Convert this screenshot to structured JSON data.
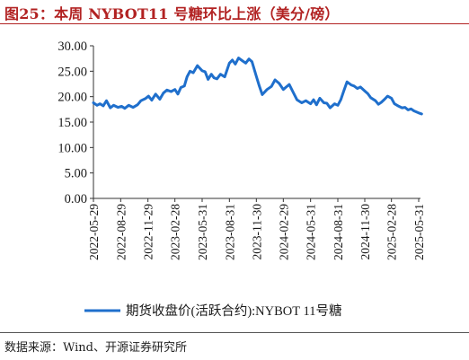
{
  "figure": {
    "title": "图25：本周 NYBOT11 号糖环比上涨（美分/磅）",
    "source": "数据来源：Wind、开源证券研究所"
  },
  "chart_data": {
    "type": "line",
    "title": "图25：本周 NYBOT11 号糖环比上涨（美分/磅）",
    "xlabel": "",
    "ylabel": "",
    "ylim": [
      0,
      30
    ],
    "yticks": [
      "0.00",
      "5.00",
      "10.00",
      "15.00",
      "20.00",
      "25.00",
      "30.00"
    ],
    "xticks": [
      "2022-05-29",
      "2022-08-29",
      "2022-11-29",
      "2023-02-28",
      "2023-05-31",
      "2023-08-31",
      "2023-11-30",
      "2024-02-29",
      "2024-05-31",
      "2024-08-31",
      "2024-11-30",
      "2025-02-28",
      "2025-05-31"
    ],
    "grid": false,
    "legend": "bottom",
    "color": "#1f6fcc",
    "series": [
      {
        "name": "期货收盘价(活跃合约):NYBOT 11号糖",
        "x": [
          "2022-05-29",
          "2022-06-10",
          "2022-06-20",
          "2022-07-01",
          "2022-07-12",
          "2022-07-25",
          "2022-08-05",
          "2022-08-20",
          "2022-09-01",
          "2022-09-12",
          "2022-09-25",
          "2022-10-10",
          "2022-10-25",
          "2022-11-05",
          "2022-11-20",
          "2022-12-01",
          "2022-12-12",
          "2022-12-25",
          "2023-01-08",
          "2023-01-20",
          "2023-02-01",
          "2023-02-15",
          "2023-02-28",
          "2023-03-10",
          "2023-03-20",
          "2023-04-01",
          "2023-04-10",
          "2023-04-20",
          "2023-05-01",
          "2023-05-15",
          "2023-05-31",
          "2023-06-10",
          "2023-06-20",
          "2023-07-01",
          "2023-07-10",
          "2023-07-20",
          "2023-08-01",
          "2023-08-15",
          "2023-08-31",
          "2023-09-10",
          "2023-09-20",
          "2023-10-01",
          "2023-10-15",
          "2023-10-25",
          "2023-11-05",
          "2023-11-15",
          "2023-11-30",
          "2023-12-10",
          "2023-12-20",
          "2024-01-05",
          "2024-01-20",
          "2024-02-01",
          "2024-02-15",
          "2024-02-29",
          "2024-03-10",
          "2024-03-20",
          "2024-04-01",
          "2024-04-15",
          "2024-05-01",
          "2024-05-15",
          "2024-05-31",
          "2024-06-10",
          "2024-06-20",
          "2024-07-01",
          "2024-07-15",
          "2024-07-25",
          "2024-08-05",
          "2024-08-20",
          "2024-08-31",
          "2024-09-10",
          "2024-09-20",
          "2024-10-01",
          "2024-10-15",
          "2024-10-25",
          "2024-11-05",
          "2024-11-15",
          "2024-11-30",
          "2024-12-10",
          "2024-12-20",
          "2025-01-05",
          "2025-01-15",
          "2025-01-25",
          "2025-02-05",
          "2025-02-15",
          "2025-02-28",
          "2025-03-10",
          "2025-03-25",
          "2025-04-05",
          "2025-04-15",
          "2025-04-25",
          "2025-05-05",
          "2025-05-15",
          "2025-05-31",
          "2025-06-10"
        ],
        "values": [
          18.8,
          18.3,
          18.6,
          18.2,
          19.2,
          17.8,
          18.3,
          17.9,
          18.1,
          17.7,
          18.3,
          17.9,
          18.4,
          19.2,
          19.6,
          20.1,
          19.3,
          20.5,
          19.5,
          20.7,
          21.3,
          21.0,
          21.4,
          20.5,
          21.8,
          22.1,
          23.9,
          25.0,
          24.7,
          26.1,
          25.1,
          24.9,
          23.4,
          24.4,
          23.7,
          23.5,
          24.4,
          23.9,
          26.6,
          27.2,
          26.4,
          27.6,
          27.0,
          26.6,
          27.4,
          26.9,
          24.0,
          22.1,
          20.4,
          21.4,
          22.0,
          23.3,
          22.6,
          21.4,
          21.9,
          22.4,
          21.0,
          19.4,
          18.8,
          19.2,
          18.6,
          19.4,
          18.4,
          19.7,
          18.8,
          18.7,
          17.8,
          18.6,
          18.3,
          19.4,
          21.1,
          22.9,
          22.3,
          22.1,
          21.6,
          21.9,
          21.1,
          20.6,
          19.8,
          19.2,
          18.5,
          18.9,
          19.5,
          20.1,
          19.7,
          18.6,
          18.1,
          17.8,
          17.9,
          17.4,
          17.6,
          17.2,
          16.8,
          16.6
        ]
      }
    ]
  }
}
